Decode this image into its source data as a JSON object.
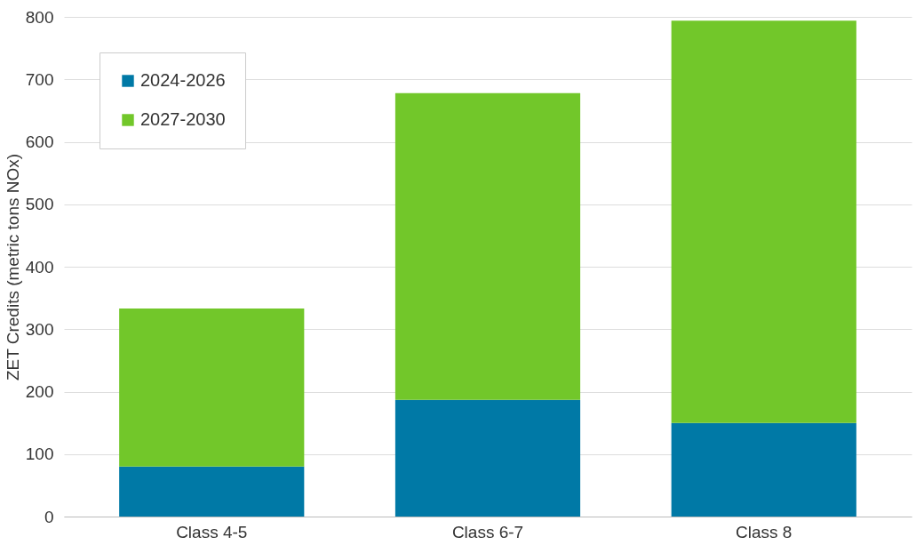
{
  "chart_data": {
    "type": "bar",
    "stacked": true,
    "ylabel": "ZET Credits (metric tons NOx)",
    "categories": [
      "Class 4-5",
      "Class 6-7",
      "Class 8"
    ],
    "series": [
      {
        "name": "2024-2026",
        "color": "#0079a6",
        "values": [
          80,
          187,
          150
        ]
      },
      {
        "name": "2027-2030",
        "color": "#72c72a",
        "values": [
          253,
          491,
          644
        ]
      }
    ],
    "ylim": [
      0,
      800
    ],
    "yticks": [
      0,
      100,
      200,
      300,
      400,
      500,
      600,
      700,
      800
    ],
    "grid": "y",
    "legend": "top left"
  }
}
